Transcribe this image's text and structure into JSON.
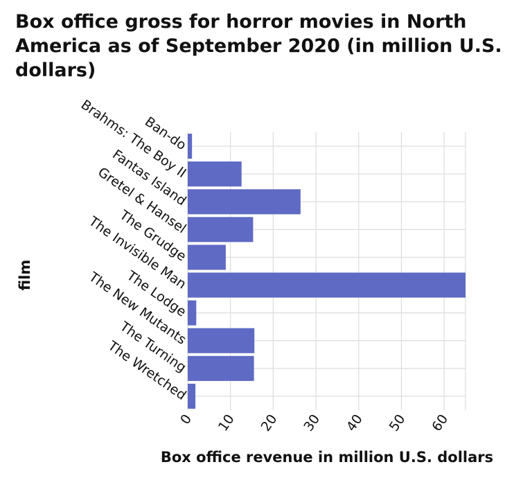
{
  "chart_data": {
    "type": "bar",
    "orientation": "horizontal",
    "title": "Box office gross for horror movies in North America as of September 2020 (in million U.S. dollars)",
    "xlabel": "Box office revenue in million U.S. dollars",
    "ylabel": "film",
    "categories": [
      "Ban-do",
      "Brahms: The Boy II",
      "Fantas Island",
      "Gretel & Hansel",
      "The Grudge",
      "The Invisible Man",
      "The Lodge",
      "The New Mutants",
      "The Turning",
      "The Wretched"
    ],
    "values": [
      1.0,
      12.6,
      26.4,
      15.3,
      8.9,
      65.0,
      2.0,
      15.6,
      15.5,
      1.8
    ],
    "xlim": [
      0,
      65
    ],
    "xticks": [
      0,
      10,
      20,
      30,
      40,
      50,
      60
    ],
    "grid": true,
    "bar_color": "#5f6ac4",
    "grid_color": "#dcdcdc",
    "background_color": "#ffffff"
  }
}
